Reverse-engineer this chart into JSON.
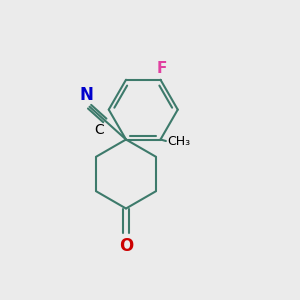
{
  "background_color": "#ebebeb",
  "bond_color": "#3d7a6b",
  "bond_width": 1.5,
  "label_F": {
    "text": "F",
    "color": "#e040a0",
    "fontsize": 11
  },
  "label_N": {
    "text": "N",
    "color": "#0000cc",
    "fontsize": 12
  },
  "label_C": {
    "text": "C",
    "color": "#000000",
    "fontsize": 10
  },
  "label_O": {
    "text": "O",
    "color": "#cc0000",
    "fontsize": 12
  },
  "label_CH3": {
    "text": "CH₃",
    "color": "#000000",
    "fontsize": 9
  },
  "figsize": [
    3.0,
    3.0
  ],
  "dpi": 100
}
